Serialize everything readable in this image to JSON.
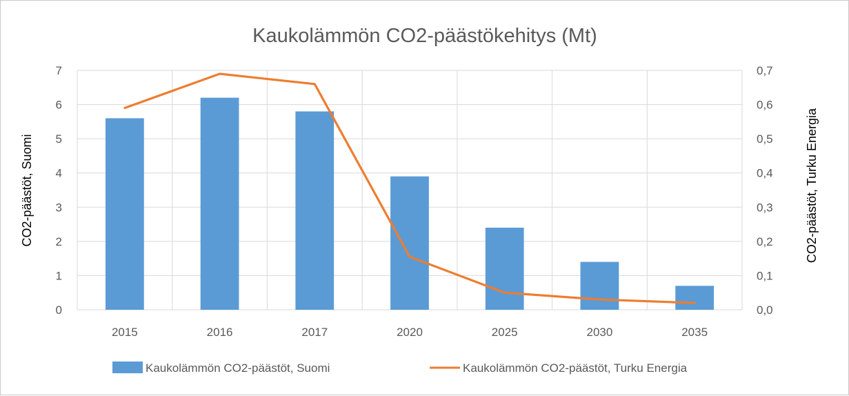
{
  "chart_data": {
    "type": "bar",
    "title": "Kaukolämmön CO2-päästökehitys (Mt)",
    "categories": [
      "2015",
      "2016",
      "2017",
      "2020",
      "2025",
      "2030",
      "2035"
    ],
    "y_left": {
      "label": "CO2-päästöt, Suomi",
      "ylim": [
        0,
        7
      ],
      "ticks": [
        "0",
        "1",
        "2",
        "3",
        "4",
        "5",
        "6",
        "7"
      ]
    },
    "y_right": {
      "label": "CO2-päästöt, Turku Energia",
      "ylim": [
        0,
        0.7
      ],
      "ticks": [
        "0,0",
        "0,1",
        "0,2",
        "0,3",
        "0,4",
        "0,5",
        "0,6",
        "0,7"
      ]
    },
    "series": [
      {
        "name": "Kaukolämmön CO2-päästöt, Suomi",
        "type": "bar",
        "axis": "left",
        "color": "#5b9bd5",
        "values": [
          5.6,
          6.2,
          5.8,
          3.9,
          2.4,
          1.4,
          0.7
        ]
      },
      {
        "name": "Kaukolämmön CO2-päästöt, Turku Energia",
        "type": "line",
        "axis": "right",
        "color": "#ed7d31",
        "values": [
          0.59,
          0.69,
          0.66,
          0.155,
          0.05,
          0.03,
          0.02
        ]
      }
    ],
    "grid": true,
    "legend_position": "bottom",
    "gridline_color": "#d9d9d9"
  }
}
